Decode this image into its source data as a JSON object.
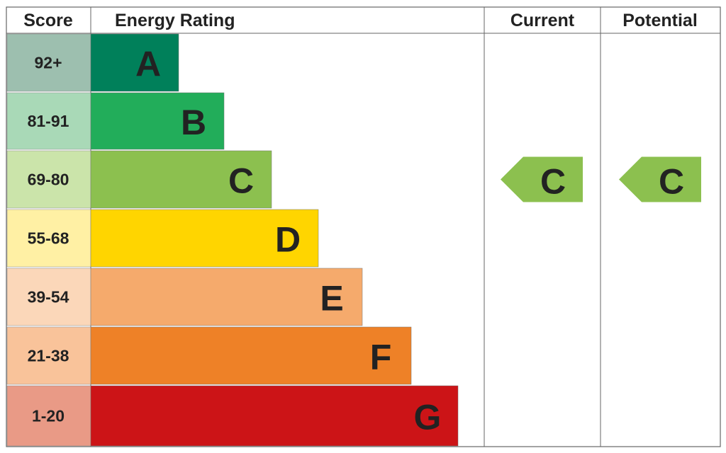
{
  "header": {
    "score": "Score",
    "rating": "Energy Rating",
    "current": "Current",
    "potential": "Potential"
  },
  "rows": [
    {
      "score": "92+",
      "band": "A"
    },
    {
      "score": "81-91",
      "band": "B"
    },
    {
      "score": "69-80",
      "band": "C"
    },
    {
      "score": "55-68",
      "band": "D"
    },
    {
      "score": "39-54",
      "band": "E"
    },
    {
      "score": "21-38",
      "band": "F"
    },
    {
      "score": "1-20",
      "band": "G"
    }
  ],
  "current": "C",
  "potential": "C"
}
